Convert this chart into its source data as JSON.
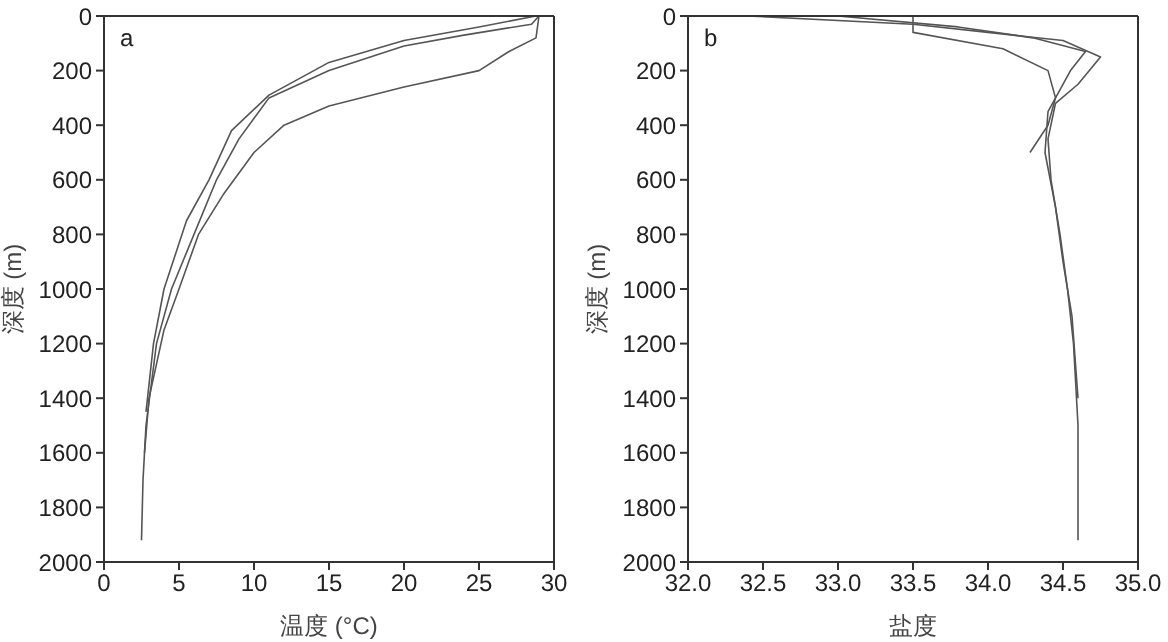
{
  "chart_data": [
    {
      "type": "line",
      "annotations": [
        "a"
      ],
      "xlabel": "温度 (°C)",
      "ylabel": "深度 (m)",
      "xlim": [
        0,
        30
      ],
      "xticks": [
        0,
        5,
        10,
        15,
        20,
        25,
        30
      ],
      "ylim": [
        2000,
        0
      ],
      "yticks": [
        0,
        200,
        400,
        600,
        800,
        1000,
        1200,
        1400,
        1600,
        1800,
        2000
      ],
      "marker": "none",
      "series": [
        {
          "color": "#555555",
          "x": [
            29,
            28.5,
            24,
            20,
            15,
            11,
            9,
            7.5,
            6,
            4.5,
            3.5,
            2.8,
            2.6,
            2.5
          ],
          "values": [
            0,
            30,
            70,
            110,
            200,
            300,
            450,
            600,
            800,
            1000,
            1200,
            1500,
            1700,
            1920
          ]
        },
        {
          "color": "#555555",
          "x": [
            29,
            28.8,
            27,
            25,
            20,
            15,
            12,
            10,
            8,
            6.3,
            5,
            4,
            3,
            2.7
          ],
          "values": [
            0,
            80,
            130,
            200,
            260,
            330,
            400,
            500,
            650,
            800,
            1000,
            1150,
            1400,
            1600
          ]
        },
        {
          "color": "#555555",
          "x": [
            28.8,
            25,
            20,
            15,
            11,
            8.5,
            7,
            5.5,
            4,
            3.3,
            2.8
          ],
          "values": [
            0,
            40,
            90,
            170,
            290,
            420,
            600,
            750,
            1000,
            1200,
            1450
          ]
        }
      ]
    },
    {
      "type": "line",
      "annotations": [
        "b"
      ],
      "xlabel": "盐度",
      "ylabel": "深度 (m)",
      "xlim": [
        32,
        35
      ],
      "xticks": [
        {
          "value": 32,
          "label": "32.0"
        },
        {
          "value": 32.5,
          "label": "32.5"
        },
        {
          "value": 33,
          "label": "33.0"
        },
        {
          "value": 33.5,
          "label": "33.5"
        },
        {
          "value": 34,
          "label": "34.0"
        },
        {
          "value": 34.5,
          "label": "34.5"
        },
        {
          "value": 35,
          "label": "35.0"
        }
      ],
      "ylim": [
        2000,
        0
      ],
      "yticks": [
        0,
        200,
        400,
        600,
        800,
        1000,
        1200,
        1400,
        1600,
        1800,
        2000
      ],
      "marker": "none",
      "series": [
        {
          "color": "#555555",
          "x": [
            32.4,
            33.5,
            34.0,
            34.5,
            34.75,
            34.6,
            34.45,
            34.4,
            34.42,
            34.48,
            34.53,
            34.57,
            34.6,
            34.6
          ],
          "values": [
            0,
            30,
            60,
            90,
            150,
            250,
            320,
            450,
            600,
            800,
            1000,
            1200,
            1500,
            1920
          ]
        },
        {
          "color": "#555555",
          "x": [
            33.0,
            33.8,
            34.3,
            34.65,
            34.55,
            34.4,
            34.38,
            34.45,
            34.5,
            34.56,
            34.6
          ],
          "values": [
            0,
            40,
            80,
            130,
            200,
            350,
            500,
            700,
            900,
            1100,
            1400
          ]
        },
        {
          "color": "#555555",
          "x": [
            33.5,
            33.5,
            34.1,
            34.4,
            34.45,
            34.4,
            34.28
          ],
          "values": [
            0,
            60,
            120,
            200,
            300,
            400,
            500
          ]
        }
      ]
    }
  ]
}
